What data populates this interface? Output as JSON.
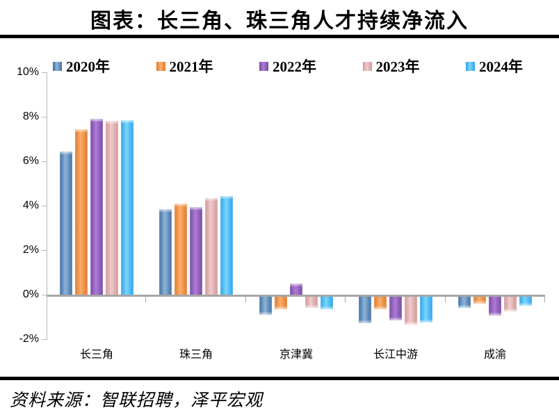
{
  "title": "图表：长三角、珠三角人才持续净流入",
  "source": "资料来源：智联招聘，泽平宏观",
  "chart_data": {
    "type": "bar",
    "title": "图表：长三角、珠三角人才持续净流入",
    "categories": [
      "长三角",
      "珠三角",
      "京津冀",
      "长江中游",
      "成渝"
    ],
    "series": [
      {
        "name": "2020年",
        "color_dark": "#3f6f9f",
        "color_light": "#8fb4da",
        "values": [
          6.45,
          3.85,
          -0.8,
          -1.2,
          -0.5
        ]
      },
      {
        "name": "2021年",
        "color_dark": "#e0792a",
        "color_light": "#fcae6e",
        "values": [
          7.45,
          4.1,
          -0.55,
          -0.55,
          -0.3
        ]
      },
      {
        "name": "2022年",
        "color_dark": "#7a48a2",
        "color_light": "#ad7cd6",
        "values": [
          7.9,
          3.95,
          0.5,
          -1.05,
          -0.85
        ]
      },
      {
        "name": "2023年",
        "color_dark": "#d0969a",
        "color_light": "#f0cbcb",
        "values": [
          7.8,
          4.35,
          -0.5,
          -1.25,
          -0.65
        ]
      },
      {
        "name": "2024年",
        "color_dark": "#2da2e8",
        "color_light": "#79d6ff",
        "values": [
          7.85,
          4.45,
          -0.55,
          -1.15,
          -0.4
        ]
      }
    ],
    "yticks": [
      {
        "label": "10%",
        "value": 10
      },
      {
        "label": "8%",
        "value": 8
      },
      {
        "label": "6%",
        "value": 6
      },
      {
        "label": "4%",
        "value": 4
      },
      {
        "label": "2%",
        "value": 2
      },
      {
        "label": "0%",
        "value": 0
      },
      {
        "label": "-2%",
        "value": -2
      }
    ],
    "ylim": [
      -2,
      10
    ],
    "grid": false,
    "legend_position": "top",
    "axis_color": "#a6a6a6",
    "unit": "percent"
  }
}
